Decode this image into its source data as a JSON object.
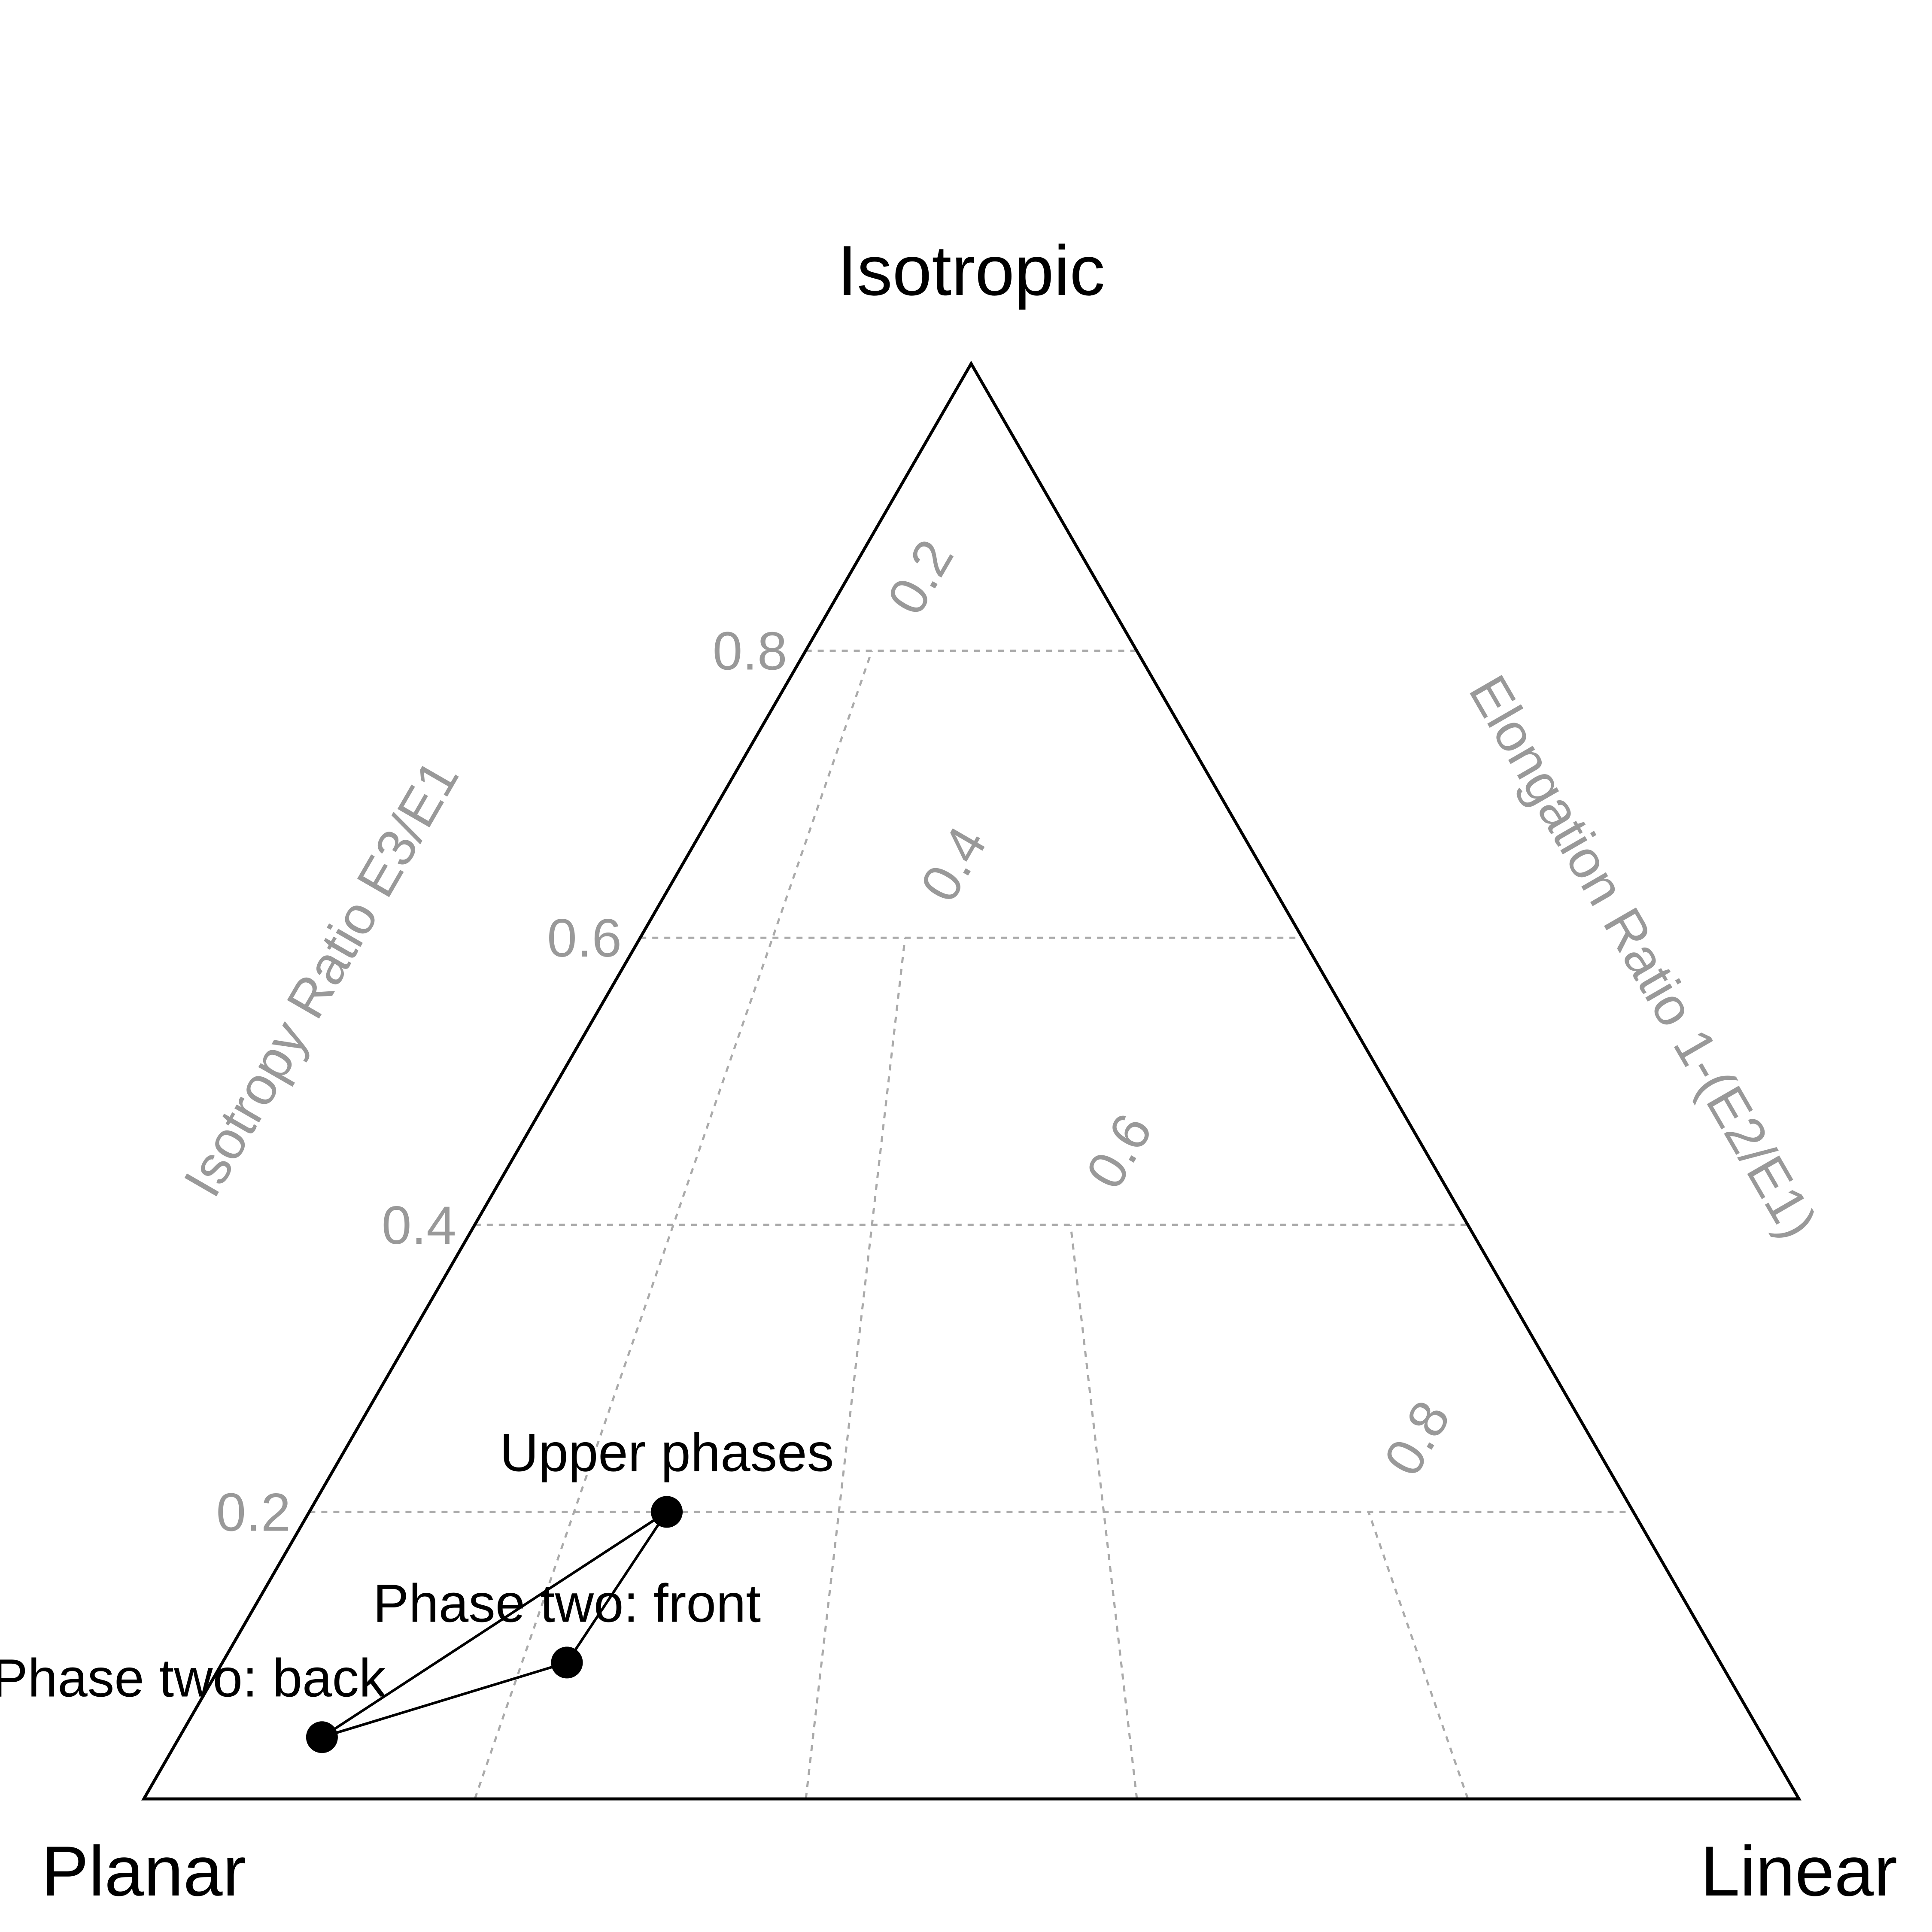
{
  "chart_data": {
    "type": "scatter",
    "subtype": "ternary",
    "title": "",
    "vertices": {
      "top": "Isotropic",
      "left": "Planar",
      "right": "Linear"
    },
    "axes": {
      "left": {
        "label": "Isotropy Ratio E3/E1",
        "ticks": [
          0.2,
          0.4,
          0.6,
          0.8
        ],
        "tick_labels": [
          "0.2",
          "0.4",
          "0.6",
          "0.8"
        ],
        "range": [
          0,
          1
        ]
      },
      "right": {
        "label": "Elongation Ratio 1-(E2/E1)",
        "ticks": [
          0.2,
          0.4,
          0.6,
          0.8
        ],
        "tick_labels": [
          "0.2",
          "0.4",
          "0.6",
          "0.8"
        ],
        "range": [
          0,
          1
        ]
      }
    },
    "grid": true,
    "connected": true,
    "points": [
      {
        "label": "Upper phases",
        "isotropy": 0.2,
        "elongation": 0.27
      },
      {
        "label": "Phase two: front",
        "isotropy": 0.095,
        "elongation": 0.23
      },
      {
        "label": "Phase two: back",
        "isotropy": 0.043,
        "elongation": 0.09
      }
    ],
    "colors": {
      "frame": "#000000",
      "grid": "#aaaaaa",
      "axis_text": "#999999",
      "points": "#000000"
    }
  }
}
